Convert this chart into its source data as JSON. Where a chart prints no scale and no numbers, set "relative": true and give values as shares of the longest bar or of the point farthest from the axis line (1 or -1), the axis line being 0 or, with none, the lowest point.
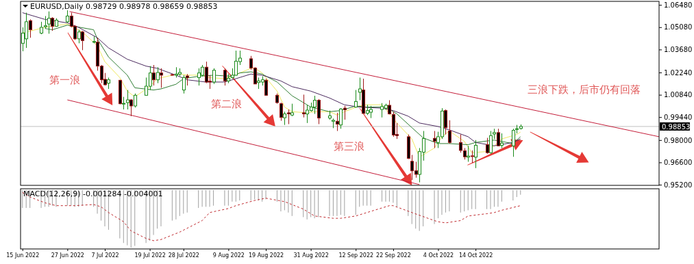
{
  "chart_data": [
    {
      "type": "candlestick",
      "title": "EURUSD,Daily 0.98729 0.98978 0.98659 0.98853",
      "x": [
        "2022-06-15",
        "2022-06-16",
        "2022-06-17",
        "2022-06-20",
        "2022-06-21",
        "2022-06-22",
        "2022-06-23",
        "2022-06-24",
        "2022-06-27",
        "2022-06-28",
        "2022-06-29",
        "2022-06-30",
        "2022-07-01",
        "2022-07-04",
        "2022-07-05",
        "2022-07-06",
        "2022-07-07",
        "2022-07-08",
        "2022-07-11",
        "2022-07-12",
        "2022-07-13",
        "2022-07-14",
        "2022-07-15",
        "2022-07-18",
        "2022-07-19",
        "2022-07-20",
        "2022-07-21",
        "2022-07-22",
        "2022-07-25",
        "2022-07-26",
        "2022-07-27",
        "2022-07-28",
        "2022-07-29",
        "2022-08-01",
        "2022-08-02",
        "2022-08-03",
        "2022-08-04",
        "2022-08-05",
        "2022-08-08",
        "2022-08-09",
        "2022-08-10",
        "2022-08-11",
        "2022-08-12",
        "2022-08-15",
        "2022-08-16",
        "2022-08-17",
        "2022-08-18",
        "2022-08-19",
        "2022-08-22",
        "2022-08-23",
        "2022-08-24",
        "2022-08-25",
        "2022-08-26",
        "2022-08-29",
        "2022-08-30",
        "2022-08-31",
        "2022-09-01",
        "2022-09-02",
        "2022-09-05",
        "2022-09-06",
        "2022-09-07",
        "2022-09-08",
        "2022-09-09",
        "2022-09-12",
        "2022-09-13",
        "2022-09-14",
        "2022-09-15",
        "2022-09-16",
        "2022-09-19",
        "2022-09-20",
        "2022-09-21",
        "2022-09-22",
        "2022-09-23",
        "2022-09-26",
        "2022-09-27",
        "2022-09-28",
        "2022-09-29",
        "2022-09-30",
        "2022-10-03",
        "2022-10-04",
        "2022-10-05",
        "2022-10-06",
        "2022-10-07",
        "2022-10-10",
        "2022-10-11",
        "2022-10-12",
        "2022-10-13",
        "2022-10-14",
        "2022-10-17",
        "2022-10-18",
        "2022-10-19",
        "2022-10-20",
        "2022-10-21",
        "2022-10-24",
        "2022-10-25",
        "2022-10-26"
      ],
      "ohlc": [
        [
          1.0407,
          1.0507,
          1.0357,
          1.0471
        ],
        [
          1.0435,
          1.0599,
          1.0378,
          1.0542
        ],
        [
          1.0549,
          1.0557,
          1.0442,
          1.0492
        ],
        [
          1.0471,
          1.0542,
          1.0464,
          1.0507
        ],
        [
          1.0511,
          1.0578,
          1.05,
          1.0517
        ],
        [
          1.0528,
          1.0607,
          1.0467,
          1.0564
        ],
        [
          1.0564,
          1.0571,
          1.0485,
          1.0514
        ],
        [
          1.0514,
          1.0564,
          1.051,
          1.0552
        ],
        [
          1.0542,
          1.0614,
          1.0535,
          1.0578
        ],
        [
          1.0578,
          1.0599,
          1.0507,
          1.0514
        ],
        [
          1.0514,
          1.0521,
          1.0428,
          1.0435
        ],
        [
          1.0435,
          1.0492,
          1.0407,
          1.0478
        ],
        [
          1.0478,
          1.0485,
          1.0364,
          1.0424
        ],
        [
          1.0414,
          1.045,
          1.0407,
          1.0418
        ],
        [
          1.0414,
          1.0442,
          1.0235,
          1.0264
        ],
        [
          1.0264,
          1.0271,
          1.0157,
          1.0178
        ],
        [
          1.0181,
          1.0221,
          1.0142,
          1.0147
        ],
        [
          1.0157,
          1.0192,
          1.0121,
          1.0178
        ],
        [
          1.0175,
          1.0178,
          1.0024,
          1.0028
        ],
        [
          1.0027,
          1.0071,
          0.9992,
          1.003
        ],
        [
          1.0035,
          1.0114,
          0.9992,
          1.0052
        ],
        [
          1.0052,
          1.0057,
          0.995,
          1.0014
        ],
        [
          1.0014,
          1.0092,
          1.0004,
          1.0081
        ],
        [
          1.0081,
          1.0192,
          1.0078,
          1.0138
        ],
        [
          1.0138,
          1.0264,
          1.0114,
          1.0221
        ],
        [
          1.0221,
          1.0271,
          1.0142,
          1.0178
        ],
        [
          1.0178,
          1.0257,
          1.0157,
          1.0224
        ],
        [
          1.0221,
          1.025,
          1.0128,
          1.0207
        ],
        [
          1.0211,
          1.0215,
          1.0204,
          1.0208
        ],
        [
          1.0207,
          1.0257,
          1.0192,
          1.0214
        ],
        [
          1.0214,
          1.025,
          1.02,
          1.0224
        ],
        [
          1.0114,
          1.0207,
          1.0092,
          1.0192
        ],
        [
          1.0202,
          1.0214,
          1.0142,
          1.0192
        ],
        [
          1.0192,
          1.025,
          1.0142,
          1.0221
        ],
        [
          1.0207,
          1.0271,
          1.02,
          1.0257
        ],
        [
          1.0257,
          1.0292,
          1.0157,
          1.0164
        ],
        [
          1.017,
          1.0207,
          1.0121,
          1.0164
        ],
        [
          1.0164,
          1.025,
          1.0152,
          1.0238
        ],
        [
          1.0238,
          1.025,
          1.0142,
          1.0171
        ],
        [
          1.0171,
          1.0214,
          1.0157,
          1.0188
        ],
        [
          1.0192,
          1.025,
          1.0185,
          1.0207
        ],
        [
          1.0207,
          1.0361,
          1.0204,
          1.0295
        ],
        [
          1.0292,
          1.0361,
          1.0271,
          1.0314
        ],
        [
          1.031,
          1.0328,
          1.0242,
          1.0252
        ],
        [
          1.0252,
          1.0257,
          1.015,
          1.0152
        ],
        [
          1.0161,
          1.0192,
          1.0121,
          1.0171
        ],
        [
          1.0164,
          1.02,
          1.0142,
          1.0178
        ],
        [
          1.0175,
          1.0185,
          1.0078,
          1.0081
        ],
        [
          1.0081,
          1.0092,
          1.0028,
          1.0035
        ],
        [
          1.0028,
          1.0035,
          0.9921,
          0.9942
        ],
        [
          0.994,
          0.9978,
          0.9895,
          0.9964
        ],
        [
          0.9971,
          0.9992,
          0.99,
          0.9964
        ],
        [
          0.9957,
          1.0028,
          0.995,
          0.9971
        ],
        [
          0.9971,
          1.0085,
          0.9942,
          0.9964
        ],
        [
          0.9964,
          1.0021,
          0.9907,
          0.9988
        ],
        [
          0.9985,
          1.0035,
          0.9978,
          1.0007
        ],
        [
          1.0007,
          1.0078,
          0.9964,
          1.005
        ],
        [
          1.005,
          1.0057,
          0.99,
          0.9938
        ],
        [
          0.9938,
          0.9985,
          0.9928,
          0.9952
        ],
        [
          0.9918,
          0.9935,
          0.9875,
          0.9924
        ],
        [
          0.9918,
          0.9971,
          0.9857,
          0.99
        ],
        [
          0.9895,
          1.0,
          0.9871,
          0.9995
        ],
        [
          1.0,
          1.0014,
          0.9928,
          0.999
        ],
        [
          1.0007,
          1.0114,
          1.0004,
          1.0042
        ],
        [
          1.01,
          1.0192,
          1.005,
          1.0121
        ],
        [
          1.0114,
          1.0185,
          0.9964,
          0.9967
        ],
        [
          0.9968,
          1.0021,
          0.9957,
          0.9985
        ],
        [
          0.9975,
          1.0014,
          0.9938,
          0.9992
        ],
        [
          0.9992,
          1.0032,
          0.9942,
          1.001
        ],
        [
          1.0,
          1.0028,
          0.9992,
          1.0018
        ],
        [
          1.0018,
          1.005,
          0.9961,
          0.9964
        ],
        [
          0.9961,
          0.9978,
          0.9821,
          0.9832
        ],
        [
          0.9835,
          0.9907,
          0.9807,
          0.9828
        ],
        [
          0.9821,
          0.9835,
          0.9681,
          0.9685
        ],
        [
          0.9667,
          0.9707,
          0.955,
          0.9607
        ],
        [
          0.9607,
          0.9664,
          0.9564,
          0.9585
        ],
        [
          0.9585,
          0.975,
          0.9535,
          0.9728
        ],
        [
          0.9724,
          0.9857,
          0.9671,
          0.981
        ],
        [
          0.9811,
          0.9857,
          0.975,
          0.9792
        ],
        [
          0.9785,
          0.9852,
          0.975,
          0.9821
        ],
        [
          0.9821,
          1.0,
          0.9807,
          0.9982
        ],
        [
          0.9985,
          0.9992,
          0.9835,
          0.9878
        ],
        [
          0.9857,
          0.9924,
          0.9778,
          0.9785
        ],
        [
          0.9785,
          0.9835,
          0.9721,
          0.9735
        ],
        [
          0.9733,
          0.975,
          0.9678,
          0.9695
        ],
        [
          0.9693,
          0.9764,
          0.9664,
          0.97
        ],
        [
          0.9701,
          0.9735,
          0.9657,
          0.9698
        ],
        [
          0.9693,
          0.98,
          0.9624,
          0.9767
        ],
        [
          0.9771,
          0.9814,
          0.9714,
          0.9721
        ],
        [
          0.9721,
          0.9857,
          0.9714,
          0.9828
        ],
        [
          0.9838,
          0.9871,
          0.9807,
          0.9847
        ],
        [
          0.9847,
          0.9871,
          0.9761,
          0.9764
        ],
        [
          0.9767,
          0.9842,
          0.975,
          0.9781
        ],
        [
          0.9764,
          0.9871,
          0.9695,
          0.9861
        ],
        [
          0.9867,
          0.9895,
          0.9842,
          0.9871
        ],
        [
          0.98729,
          0.98978,
          0.98659,
          0.98853
        ]
      ],
      "series": [
        {
          "type": "line",
          "color": "#f0e860",
          "x": [
            "2022-06-15",
            "2022-06-21",
            "2022-06-27",
            "2022-06-28",
            "2022-07-01",
            "2022-07-05",
            "2022-07-07",
            "2022-07-11",
            "2022-07-13",
            "2022-07-15",
            "2022-07-19",
            "2022-07-21",
            "2022-07-25",
            "2022-07-27",
            "2022-07-29",
            "2022-08-02",
            "2022-08-04",
            "2022-08-08",
            "2022-08-10",
            "2022-08-15",
            "2022-08-16",
            "2022-08-18",
            "2022-08-22",
            "2022-08-24",
            "2022-08-26",
            "2022-08-30",
            "2022-09-01",
            "2022-09-05",
            "2022-09-07",
            "2022-09-09",
            "2022-09-13",
            "2022-09-15",
            "2022-09-19",
            "2022-09-23",
            "2022-09-27",
            "2022-09-29",
            "2022-10-03",
            "2022-10-05",
            "2022-10-07",
            "2022-10-11",
            "2022-10-13",
            "2022-10-17",
            "2022-10-19",
            "2022-10-21",
            "2022-10-25",
            "2022-10-26"
          ],
          "values": [
            1.0471,
            1.0507,
            1.0528,
            1.0514,
            1.0478,
            1.0392,
            1.0292,
            1.0192,
            1.0107,
            1.0071,
            1.0135,
            1.0185,
            1.0207,
            1.0214,
            1.0207,
            1.0207,
            1.0192,
            1.0185,
            1.02,
            1.025,
            1.0252,
            1.0221,
            1.0107,
            1.0007,
            0.9978,
            0.9971,
            0.9978,
            0.9978,
            0.9957,
            0.9978,
            1.0014,
            1.0021,
            1.0021,
            0.9907,
            0.9807,
            0.9693,
            0.975,
            0.9821,
            0.9857,
            0.9792,
            0.9721,
            0.9728,
            0.9764,
            0.9807,
            0.9835,
            0.985
          ]
        },
        {
          "type": "line",
          "color": "#2e7d32",
          "x": [
            "2022-06-21",
            "2022-06-23",
            "2022-06-27",
            "2022-07-04",
            "2022-07-05",
            "2022-07-08",
            "2022-07-13",
            "2022-07-15",
            "2022-07-20",
            "2022-07-22",
            "2022-07-26",
            "2022-07-28",
            "2022-08-01",
            "2022-08-05",
            "2022-08-10",
            "2022-08-12",
            "2022-08-15",
            "2022-08-18",
            "2022-08-22",
            "2022-08-26",
            "2022-08-31",
            "2022-09-05",
            "2022-09-08",
            "2022-09-12",
            "2022-09-15",
            "2022-09-20",
            "2022-09-23",
            "2022-09-27",
            "2022-09-30",
            "2022-10-04",
            "2022-10-07",
            "2022-10-12",
            "2022-10-14",
            "2022-10-19",
            "2022-10-24",
            "2022-10-26"
          ],
          "values": [
            1.05,
            1.0492,
            1.0521,
            1.0492,
            1.0435,
            1.0321,
            1.0207,
            1.0128,
            1.0114,
            1.0121,
            1.015,
            1.0185,
            1.02,
            1.0207,
            1.02,
            1.0221,
            1.0228,
            1.0214,
            1.0164,
            1.0078,
            1.0007,
            0.9978,
            0.9985,
            1.0014,
            1.0007,
            1.0007,
            0.9964,
            0.9878,
            0.9814,
            0.9778,
            0.9778,
            0.9771,
            0.9785,
            0.98,
            0.9778,
            0.9821
          ]
        },
        {
          "type": "line",
          "color": "#4b2a5e",
          "x": [
            "2022-06-15",
            "2022-06-21",
            "2022-06-27",
            "2022-06-30",
            "2022-07-05",
            "2022-07-08",
            "2022-07-13",
            "2022-07-18",
            "2022-07-21",
            "2022-07-26",
            "2022-07-29",
            "2022-08-03",
            "2022-08-08",
            "2022-08-11",
            "2022-08-15",
            "2022-08-18",
            "2022-08-23",
            "2022-08-26",
            "2022-08-31",
            "2022-09-05",
            "2022-09-09",
            "2022-09-13",
            "2022-09-19",
            "2022-09-22",
            "2022-09-26",
            "2022-09-29",
            "2022-10-04",
            "2022-10-07",
            "2022-10-12",
            "2022-10-14",
            "2022-10-19",
            "2022-10-24",
            "2022-10-26"
          ],
          "values": [
            1.0599,
            1.0557,
            1.0535,
            1.0507,
            1.0442,
            1.0378,
            1.0307,
            1.0264,
            1.025,
            1.0207,
            1.0178,
            1.0164,
            1.0164,
            1.0185,
            1.0214,
            1.0207,
            1.0171,
            1.0135,
            1.0107,
            1.0064,
            1.0021,
            1.0007,
            1.0,
            0.9985,
            0.995,
            0.9907,
            0.9885,
            0.9864,
            0.9821,
            0.9785,
            0.9764,
            0.9785,
            0.9807
          ]
        },
        {
          "type": "line",
          "color": "#c41e3a",
          "x": [
            "2022-06-27T14:00",
            "2022-12-02"
          ],
          "values": [
            1.0606,
            0.9821
          ]
        },
        {
          "type": "line",
          "color": "#c41e3a",
          "x": [
            "2022-06-27",
            "2022-09-29"
          ],
          "values": [
            1.0052,
            0.9521
          ]
        }
      ],
      "xlim": [
        "2022-06-14T12:00",
        "2022-12-02"
      ],
      "ylim": [
        0.9516,
        1.067
      ],
      "yticks": [
        {
          "value": 1.0648,
          "label": "1.06480"
        },
        {
          "value": 1.0508,
          "label": "1.05080"
        },
        {
          "value": 1.0368,
          "label": "1.03680"
        },
        {
          "value": 1.0224,
          "label": "1.02240"
        },
        {
          "value": 1.0084,
          "label": "1.00840"
        },
        {
          "value": 0.9944,
          "label": "0.99440"
        },
        {
          "value": 0.98,
          "label": "0.98000"
        },
        {
          "value": 0.966,
          "label": "0.96600"
        },
        {
          "value": 0.952,
          "label": "0.95200"
        }
      ],
      "ref_lines": [
        {
          "axis": "y",
          "value": 0.98853,
          "label": "0.98853",
          "color": "#c0c0c0"
        }
      ],
      "annotations": [
        "第一浪",
        "第二浪",
        "第三浪",
        "三浪下跌，后市仍有回落"
      ],
      "tick_labels": "y"
    },
    {
      "type": "bar",
      "title": "MACD(12,26,9) -0.001284 -0.004001",
      "relative": true,
      "x": [
        "2022-06-15",
        "2022-06-16",
        "2022-06-17",
        "2022-06-20",
        "2022-06-21",
        "2022-06-22",
        "2022-06-23",
        "2022-06-24",
        "2022-06-27",
        "2022-06-28",
        "2022-06-29",
        "2022-06-30",
        "2022-07-01",
        "2022-07-04",
        "2022-07-05",
        "2022-07-06",
        "2022-07-07",
        "2022-07-08",
        "2022-07-11",
        "2022-07-12",
        "2022-07-13",
        "2022-07-14",
        "2022-07-15",
        "2022-07-18",
        "2022-07-19",
        "2022-07-20",
        "2022-07-21",
        "2022-07-22",
        "2022-07-25",
        "2022-07-26",
        "2022-07-27",
        "2022-07-28",
        "2022-07-29",
        "2022-08-01",
        "2022-08-02",
        "2022-08-03",
        "2022-08-04",
        "2022-08-05",
        "2022-08-08",
        "2022-08-09",
        "2022-08-10",
        "2022-08-11",
        "2022-08-12",
        "2022-08-15",
        "2022-08-16",
        "2022-08-17",
        "2022-08-18",
        "2022-08-19",
        "2022-08-22",
        "2022-08-23",
        "2022-08-24",
        "2022-08-25",
        "2022-08-26",
        "2022-08-29",
        "2022-08-30",
        "2022-08-31",
        "2022-09-01",
        "2022-09-02",
        "2022-09-05",
        "2022-09-06",
        "2022-09-07",
        "2022-09-08",
        "2022-09-09",
        "2022-09-12",
        "2022-09-13",
        "2022-09-14",
        "2022-09-15",
        "2022-09-16",
        "2022-09-19",
        "2022-09-20",
        "2022-09-21",
        "2022-09-22",
        "2022-09-23",
        "2022-09-26",
        "2022-09-27",
        "2022-09-28",
        "2022-09-29",
        "2022-09-30",
        "2022-10-03",
        "2022-10-04",
        "2022-10-05",
        "2022-10-06",
        "2022-10-07",
        "2022-10-10",
        "2022-10-11",
        "2022-10-12",
        "2022-10-13",
        "2022-10-14",
        "2022-10-17",
        "2022-10-18",
        "2022-10-19",
        "2022-10-20",
        "2022-10-21",
        "2022-10-24",
        "2022-10-25",
        "2022-10-26"
      ],
      "series": [
        {
          "type": "bar",
          "color": "#a8a8a8",
          "values": [
            -0.31,
            -0.31,
            -0.31,
            -0.31,
            -0.29,
            -0.29,
            -0.27,
            -0.29,
            -0.27,
            -0.27,
            -0.29,
            -0.29,
            -0.27,
            -0.29,
            -0.41,
            -0.53,
            -0.63,
            -0.69,
            -0.84,
            -0.92,
            -0.96,
            -1,
            -0.97,
            -0.92,
            -0.88,
            -0.78,
            -0.67,
            -0.63,
            -0.53,
            -0.51,
            -0.45,
            -0.41,
            -0.39,
            -0.31,
            -0.29,
            -0.29,
            -0.29,
            -0.27,
            -0.27,
            -0.27,
            -0.2,
            -0.2,
            -0.18,
            -0.18,
            -0.16,
            -0.18,
            -0.2,
            -0.16,
            -0.2,
            -0.37,
            -0.35,
            -0.39,
            -0.45,
            -0.47,
            -0.51,
            -0.47,
            -0.49,
            -0.47,
            -0.45,
            -0.45,
            -0.45,
            -0.43,
            -0.45,
            -0.43,
            -0.29,
            -0.27,
            -0.27,
            -0.27,
            -0.2,
            -0.2,
            -0.2,
            -0.22,
            -0.29,
            -0.45,
            -0.59,
            -0.67,
            -0.71,
            -0.63,
            -0.59,
            -0.49,
            -0.43,
            -0.39,
            -0.37,
            -0.39,
            -0.37,
            -0.35,
            -0.33,
            -0.33,
            -0.33,
            -0.33,
            -0.29,
            -0.29,
            -0.2,
            -0.18,
            -0.12,
            -0.08
          ]
        },
        {
          "type": "line",
          "color": "#c0282d",
          "line_style": "dashed",
          "x": [
            "2022-06-15",
            "2022-06-17",
            "2022-06-21",
            "2022-06-24",
            "2022-06-29",
            "2022-07-04",
            "2022-07-06",
            "2022-07-08",
            "2022-07-12",
            "2022-07-14",
            "2022-07-18",
            "2022-07-20",
            "2022-07-22",
            "2022-07-27",
            "2022-08-02",
            "2022-08-04",
            "2022-08-09",
            "2022-08-11",
            "2022-08-16",
            "2022-08-19",
            "2022-08-24",
            "2022-08-29",
            "2022-09-01",
            "2022-09-06",
            "2022-09-08",
            "2022-09-12",
            "2022-09-14",
            "2022-09-16",
            "2022-09-21",
            "2022-09-22",
            "2022-09-27",
            "2022-10-03",
            "2022-10-04",
            "2022-10-06",
            "2022-10-10",
            "2022-10-12",
            "2022-10-17",
            "2022-10-19",
            "2022-10-21",
            "2022-10-26"
          ],
          "values": [
            -0.04,
            -0.12,
            -0.22,
            -0.27,
            -0.27,
            -0.25,
            -0.29,
            -0.39,
            -0.55,
            -0.71,
            -0.84,
            -0.88,
            -0.86,
            -0.73,
            -0.53,
            -0.39,
            -0.32,
            -0.27,
            -0.18,
            -0.14,
            -0.2,
            -0.33,
            -0.45,
            -0.49,
            -0.49,
            -0.45,
            -0.41,
            -0.37,
            -0.27,
            -0.27,
            -0.39,
            -0.53,
            -0.55,
            -0.57,
            -0.53,
            -0.45,
            -0.41,
            -0.39,
            -0.35,
            -0.27
          ]
        }
      ],
      "xlim": [
        "2022-06-14T12:00",
        "2022-12-02"
      ],
      "xticks": [
        {
          "value": "2022-06-15",
          "label": "15 Jun 2022"
        },
        {
          "value": "2022-06-27",
          "label": "27 Jun 2022"
        },
        {
          "value": "2022-07-07",
          "label": "7 Jul 2022"
        },
        {
          "value": "2022-07-19",
          "label": "19 Jul 2022"
        },
        {
          "value": "2022-07-28",
          "label": "28 Jul 2022"
        },
        {
          "value": "2022-08-09",
          "label": "9 Aug 2022"
        },
        {
          "value": "2022-08-19",
          "label": "19 Aug 2022"
        },
        {
          "value": "2022-08-31",
          "label": "31 Aug 2022"
        },
        {
          "value": "2022-09-12",
          "label": "12 Sep 2022"
        },
        {
          "value": "2022-09-22",
          "label": "22 Sep 2022"
        },
        {
          "value": "2022-10-04",
          "label": "4 Oct 2022"
        },
        {
          "value": "2022-10-14",
          "label": "14 Oct 2022"
        }
      ],
      "tick_labels": "x"
    }
  ]
}
